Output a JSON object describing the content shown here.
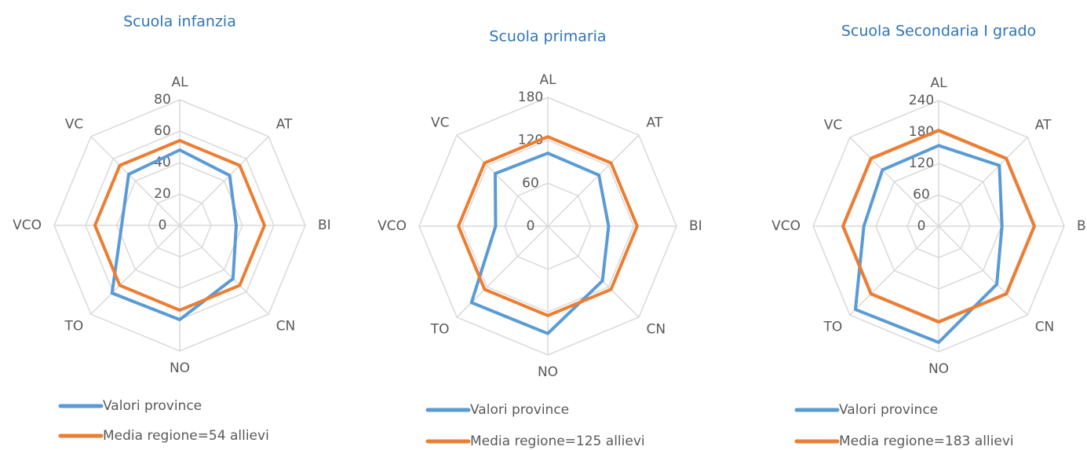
{
  "chart_data": [
    {
      "type": "radar",
      "title": "Scuola infanzia",
      "categories": [
        "AL",
        "AT",
        "BI",
        "CN",
        "NO",
        "TO",
        "VCO",
        "VC"
      ],
      "series": [
        {
          "name": "Valori province",
          "color": "#5b9bd5",
          "values": [
            48,
            45,
            36,
            48,
            60,
            61,
            37,
            46
          ]
        },
        {
          "name": "Media regione=54 allievi",
          "color": "#ed7d31",
          "values": [
            54,
            54,
            54,
            54,
            54,
            54,
            54,
            54
          ]
        }
      ],
      "ylim": [
        0,
        80
      ],
      "yticks": [
        0,
        20,
        40,
        60,
        80
      ],
      "grid": true
    },
    {
      "type": "radar",
      "title": "Scuola primaria",
      "categories": [
        "AL",
        "AT",
        "BI",
        "CN",
        "NO",
        "TO",
        "VCO",
        "VC"
      ],
      "series": [
        {
          "name": "Valori province",
          "color": "#5b9bd5",
          "values": [
            102,
            101,
            85,
            108,
            150,
            151,
            73,
            104
          ]
        },
        {
          "name": "Media regione=125 allievi",
          "color": "#ed7d31",
          "values": [
            125,
            125,
            125,
            125,
            125,
            125,
            125,
            125
          ]
        }
      ],
      "ylim": [
        0,
        180
      ],
      "yticks": [
        0,
        60,
        120,
        180
      ],
      "grid": true
    },
    {
      "type": "radar",
      "title": "Scuola Secondaria I grado",
      "categories": [
        "AL",
        "AT",
        "BI",
        "CN",
        "NO",
        "TO",
        "VCO",
        "VC"
      ],
      "series": [
        {
          "name": "Valori province",
          "color": "#5b9bd5",
          "values": [
            154,
            164,
            121,
            157,
            222,
            225,
            143,
            152
          ]
        },
        {
          "name": "Media regione=183 allievi",
          "color": "#ed7d31",
          "values": [
            183,
            183,
            183,
            183,
            183,
            183,
            183,
            183
          ]
        }
      ],
      "ylim": [
        0,
        240
      ],
      "yticks": [
        0,
        60,
        120,
        180,
        240
      ],
      "grid": true
    }
  ]
}
